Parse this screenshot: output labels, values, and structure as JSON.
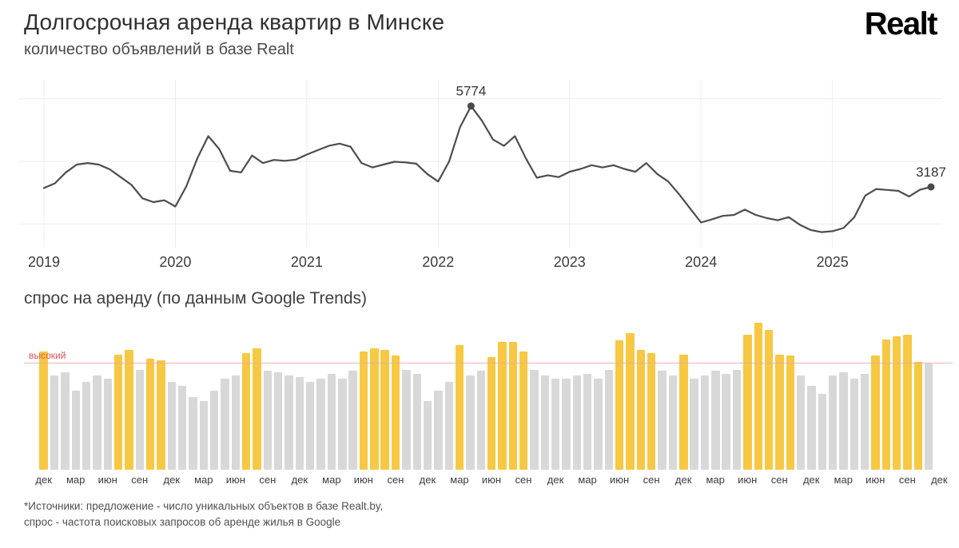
{
  "header": {
    "title": "Долгосрочная аренда квартир в Минске",
    "subtitle": "количество объявлений в базе Realt",
    "logo_text": "Realt"
  },
  "chart_data": [
    {
      "id": "supply-line",
      "type": "line",
      "title": "количество объявлений в базе Realt",
      "x_step": "month",
      "year_ticks": [
        "2019",
        "2020",
        "2021",
        "2022",
        "2023",
        "2024",
        "2025"
      ],
      "values": [
        3150,
        3300,
        3650,
        3900,
        3950,
        3900,
        3750,
        3500,
        3250,
        2820,
        2700,
        2760,
        2560,
        3200,
        4100,
        4810,
        4400,
        3700,
        3650,
        4190,
        3950,
        4050,
        4020,
        4060,
        4220,
        4360,
        4500,
        4570,
        4470,
        3950,
        3810,
        3900,
        3990,
        3970,
        3930,
        3600,
        3360,
        4000,
        5100,
        5774,
        5300,
        4700,
        4500,
        4810,
        4100,
        3480,
        3560,
        3500,
        3670,
        3760,
        3880,
        3810,
        3880,
        3760,
        3670,
        3950,
        3600,
        3360,
        2950,
        2500,
        2050,
        2150,
        2260,
        2290,
        2460,
        2290,
        2190,
        2120,
        2220,
        1980,
        1810,
        1740,
        1770,
        1870,
        2220,
        2910,
        3120,
        3090,
        3060,
        2880,
        3100,
        3187
      ],
      "ylim": [
        1500,
        6200
      ],
      "grid_y": [
        2000,
        4000,
        6000
      ],
      "annotations": [
        {
          "index": 39,
          "label": "5774"
        },
        {
          "index": 81,
          "label": "3187"
        }
      ],
      "line_color": "#4d4d4d",
      "grid": true
    },
    {
      "id": "demand-bars",
      "type": "bar",
      "title": "спрос на аренду (по данным Google Trends)",
      "x_step": "month",
      "values": [
        78,
        62,
        64,
        52,
        58,
        62,
        60,
        76,
        79,
        66,
        73,
        72,
        58,
        55,
        48,
        45,
        52,
        60,
        62,
        77,
        80,
        65,
        64,
        62,
        61,
        58,
        60,
        63,
        60,
        65,
        78,
        80,
        79,
        75,
        66,
        63,
        45,
        52,
        58,
        82,
        62,
        65,
        74,
        84,
        84,
        78,
        66,
        62,
        60,
        60,
        62,
        63,
        60,
        66,
        85,
        90,
        79,
        77,
        65,
        62,
        76,
        60,
        62,
        65,
        63,
        66,
        89,
        97,
        92,
        76,
        75,
        62,
        55,
        50,
        62,
        64,
        60,
        63,
        75,
        86,
        88,
        89,
        71,
        70
      ],
      "ylim": [
        0,
        100
      ],
      "threshold": {
        "label": "высокий",
        "value": 70
      },
      "tick_cycle": [
        "дек",
        "мар",
        "июн",
        "сен"
      ],
      "bar_color_above": "#f7c843",
      "bar_color_below": "#d8d8d8",
      "threshold_color": "#e8a7a7",
      "threshold_label_color": "#e05252",
      "legend_position": "none"
    }
  ],
  "footnote": {
    "line1": "*Источники: предложение - число уникальных объектов в базе Realt.by,",
    "line2": "спрос - частота поисковых запросов об аренде жилья в Google"
  }
}
